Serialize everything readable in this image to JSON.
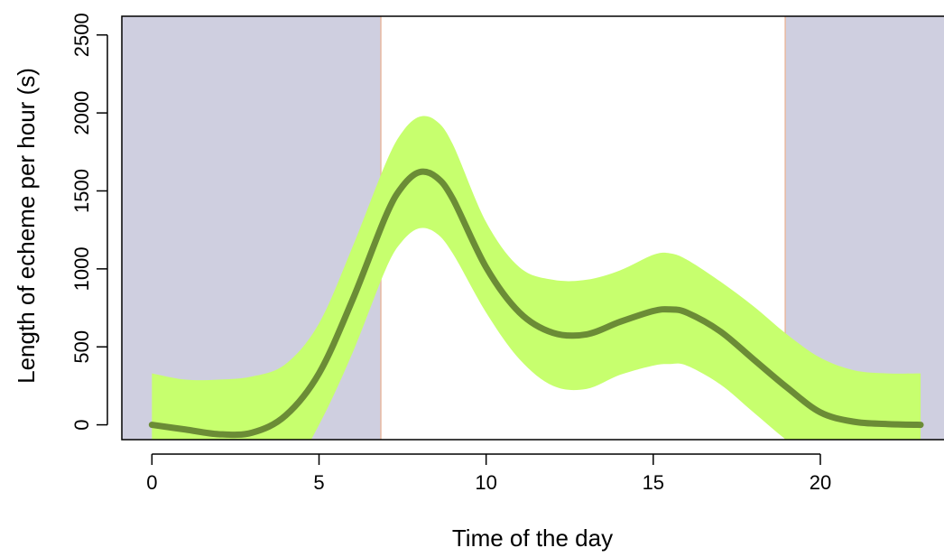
{
  "chart_data": {
    "type": "line",
    "xlabel": "Time of the day",
    "ylabel": "Length of echeme per hour (s)",
    "xlim": [
      -0.9,
      23.7
    ],
    "ylim": [
      -95,
      2620
    ],
    "xticks": [
      0,
      5,
      10,
      15,
      20
    ],
    "yticks": [
      0,
      500,
      1000,
      1500,
      2000,
      2500
    ],
    "grid": false,
    "night_shading": [
      {
        "from": -0.9,
        "to": 6.85
      },
      {
        "from": 18.95,
        "to": 23.7
      }
    ],
    "series": [
      {
        "kind": "fit",
        "x": [
          0,
          1,
          2,
          3,
          4,
          5,
          6,
          7,
          7.5,
          8,
          8.5,
          9,
          10,
          11,
          12,
          13,
          14,
          15,
          15.5,
          16,
          17,
          18,
          19,
          20,
          21,
          22,
          23
        ],
        "y": [
          0,
          -30,
          -60,
          -50,
          60,
          330,
          800,
          1340,
          1530,
          1620,
          1590,
          1450,
          1010,
          720,
          590,
          580,
          660,
          730,
          740,
          720,
          600,
          420,
          240,
          80,
          20,
          5,
          0
        ]
      }
    ],
    "confidence_band": {
      "x": [
        0,
        1,
        2,
        3,
        4,
        5,
        6,
        7,
        7.5,
        8,
        8.5,
        9,
        10,
        11,
        12,
        13,
        14,
        15,
        15.5,
        16,
        17,
        18,
        19,
        20,
        21,
        22,
        23
      ],
      "upper": [
        330,
        290,
        290,
        310,
        390,
        650,
        1140,
        1680,
        1880,
        1975,
        1950,
        1800,
        1300,
        1010,
        930,
        930,
        990,
        1090,
        1100,
        1060,
        920,
        760,
        580,
        430,
        350,
        330,
        330
      ],
      "lower": [
        -200,
        -300,
        -400,
        -450,
        -350,
        0,
        460,
        1000,
        1180,
        1260,
        1230,
        1100,
        720,
        420,
        250,
        230,
        320,
        380,
        390,
        380,
        260,
        80,
        -100,
        -250,
        -330,
        -360,
        -380
      ]
    },
    "colors": {
      "background": "#ffffff",
      "night": "#cfcfe0",
      "band": "#c7ff6e",
      "line": "#6b8c36",
      "axis": "#000000",
      "night_edge": "#e8b9a0"
    }
  }
}
